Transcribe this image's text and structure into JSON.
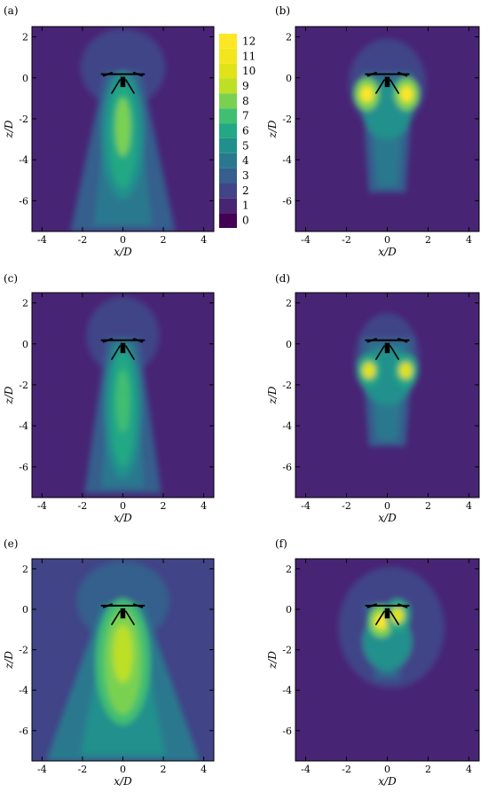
{
  "chart_data": {
    "type": "heatmap",
    "colormap": [
      "#440154",
      "#482475",
      "#414487",
      "#355f8d",
      "#2a788e",
      "#21908d",
      "#22a884",
      "#42be71",
      "#7ad151",
      "#bddf26",
      "#dfe318",
      "#f4e61e",
      "#fde725"
    ],
    "colorbar": {
      "levels": [
        0,
        1,
        2,
        3,
        4,
        5,
        6,
        7,
        8,
        9,
        10,
        11,
        12
      ],
      "labels": [
        "0",
        "1",
        "2",
        "3",
        "4",
        "5",
        "6",
        "7",
        "8",
        "9",
        "10",
        "11",
        "12"
      ]
    },
    "xlabel": "x/D",
    "ylabel": "z/D",
    "xlim": [
      -4.5,
      4.5
    ],
    "ylim": [
      -7.5,
      2.5
    ],
    "xticks": [
      -4,
      -2,
      0,
      2,
      4
    ],
    "yticks": [
      -6,
      -4,
      -2,
      0,
      2
    ],
    "panels": [
      {
        "label": "(a)",
        "background_level": 1,
        "peak_level": 8,
        "halo": {
          "x": 0,
          "z": 0.5,
          "rx": 2.1,
          "rz": 1.9,
          "level": 2
        },
        "wake": {
          "top": 0.3,
          "bottom": -7.5,
          "half_width_top": 0.9,
          "half_width_bottom": 2.6,
          "level": 3
        },
        "core": {
          "x": 0,
          "z": -2.8,
          "rx": 0.7,
          "rz": 2.6,
          "level": 6
        }
      },
      {
        "label": "(b)",
        "background_level": 1,
        "peak_level": 12,
        "halo": {
          "x": 0,
          "z": -0.3,
          "rx": 1.9,
          "rz": 2.2,
          "level": 2
        },
        "wake": {
          "top": 0.3,
          "bottom": -5.6,
          "half_width_top": 1.3,
          "half_width_bottom": 0.9,
          "level": 3
        },
        "hotspots": [
          {
            "x": -1.0,
            "z": -0.8,
            "level": 12
          },
          {
            "x": 0.95,
            "z": -0.8,
            "level": 12
          }
        ]
      },
      {
        "label": "(c)",
        "background_level": 1,
        "peak_level": 7,
        "halo": {
          "x": 0,
          "z": 0.4,
          "rx": 1.8,
          "rz": 1.9,
          "level": 2
        },
        "wake": {
          "top": 0.3,
          "bottom": -7.3,
          "half_width_top": 0.8,
          "half_width_bottom": 1.9,
          "level": 3
        },
        "core": {
          "x": 0,
          "z": -3.2,
          "rx": 0.6,
          "rz": 2.8,
          "level": 6
        }
      },
      {
        "label": "(d)",
        "background_level": 1,
        "peak_level": 11,
        "halo": {
          "x": 0,
          "z": -0.8,
          "rx": 1.6,
          "rz": 2.3,
          "level": 2
        },
        "wake": {
          "top": 0.3,
          "bottom": -5.0,
          "half_width_top": 1.3,
          "half_width_bottom": 0.9,
          "level": 3
        },
        "hotspots": [
          {
            "x": -0.9,
            "z": -1.3,
            "level": 10
          },
          {
            "x": 0.9,
            "z": -1.3,
            "level": 10
          }
        ]
      },
      {
        "label": "(e)",
        "background_level": 2,
        "peak_level": 9,
        "halo": {
          "x": 0,
          "z": 0.4,
          "rx": 2.3,
          "rz": 2.0,
          "level": 3
        },
        "wake": {
          "top": 0.3,
          "bottom": -7.5,
          "half_width_top": 1.0,
          "half_width_bottom": 3.8,
          "level": 4
        },
        "core": {
          "x": 0,
          "z": -2.6,
          "rx": 0.9,
          "rz": 2.6,
          "level": 8
        }
      },
      {
        "label": "(f)",
        "background_level": 1,
        "peak_level": 12,
        "halo": {
          "x": 0.2,
          "z": -0.9,
          "rx": 2.6,
          "rz": 3.0,
          "level": 2
        },
        "wake": {
          "top": 0.3,
          "bottom": -3.5,
          "half_width_top": 1.2,
          "half_width_bottom": 0.6,
          "level": 3
        },
        "hotspots": [
          {
            "x": -0.3,
            "z": -0.6,
            "level": 12
          },
          {
            "x": 0.5,
            "z": -0.3,
            "level": 10
          }
        ]
      }
    ]
  }
}
